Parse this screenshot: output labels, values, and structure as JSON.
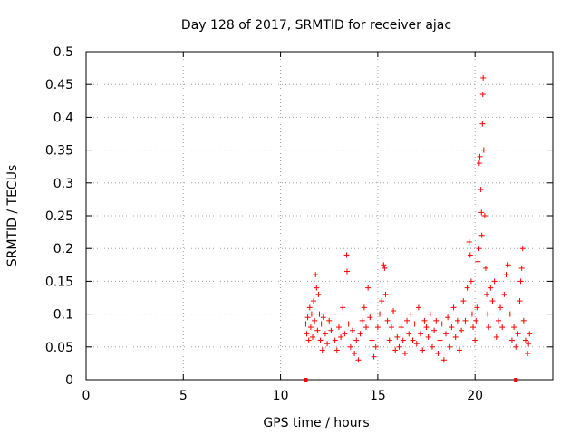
{
  "chart_data": {
    "type": "scatter",
    "title": "Day 128 of 2017, SRMTID for receiver ajac",
    "xlabel": "GPS time / hours",
    "ylabel": "SRMTID / TECUs",
    "xlim": [
      0,
      24
    ],
    "ylim": [
      0,
      0.5
    ],
    "grid": true,
    "marker": "+",
    "color": "#ff0000",
    "x_ticks": [
      {
        "value": 0,
        "label": "0"
      },
      {
        "value": 5,
        "label": "5"
      },
      {
        "value": 10,
        "label": "10"
      },
      {
        "value": 15,
        "label": "15"
      },
      {
        "value": 20,
        "label": "20"
      }
    ],
    "y_ticks": [
      {
        "value": 0,
        "label": "0"
      },
      {
        "value": 0.05,
        "label": "0.05"
      },
      {
        "value": 0.1,
        "label": "0.1"
      },
      {
        "value": 0.15,
        "label": "0.15"
      },
      {
        "value": 0.2,
        "label": "0.2"
      },
      {
        "value": 0.25,
        "label": "0.25"
      },
      {
        "value": 0.3,
        "label": "0.3"
      },
      {
        "value": 0.35,
        "label": "0.35"
      },
      {
        "value": 0.4,
        "label": "0.4"
      },
      {
        "value": 0.45,
        "label": "0.45"
      },
      {
        "value": 0.5,
        "label": "0.5"
      }
    ],
    "series": [
      {
        "name": "SRMTID",
        "points": [
          [
            11.3,
            0.085
          ],
          [
            11.35,
            0.07
          ],
          [
            11.4,
            0.095
          ],
          [
            11.45,
            0.06
          ],
          [
            11.5,
            0.11
          ],
          [
            11.55,
            0.08
          ],
          [
            11.6,
            0.1
          ],
          [
            11.65,
            0.065
          ],
          [
            11.7,
            0.12
          ],
          [
            11.75,
            0.09
          ],
          [
            11.8,
            0.16
          ],
          [
            11.85,
            0.14
          ],
          [
            11.9,
            0.075
          ],
          [
            11.95,
            0.13
          ],
          [
            12.0,
            0.1
          ],
          [
            12.05,
            0.06
          ],
          [
            12.1,
            0.085
          ],
          [
            12.15,
            0.045
          ],
          [
            12.2,
            0.095
          ],
          [
            12.3,
            0.07
          ],
          [
            12.4,
            0.055
          ],
          [
            12.5,
            0.09
          ],
          [
            12.6,
            0.075
          ],
          [
            12.7,
            0.1
          ],
          [
            12.8,
            0.06
          ],
          [
            12.9,
            0.045
          ],
          [
            13.0,
            0.08
          ],
          [
            13.1,
            0.065
          ],
          [
            13.2,
            0.11
          ],
          [
            13.3,
            0.07
          ],
          [
            13.4,
            0.19
          ],
          [
            13.42,
            0.165
          ],
          [
            13.5,
            0.085
          ],
          [
            13.6,
            0.05
          ],
          [
            13.7,
            0.075
          ],
          [
            13.8,
            0.04
          ],
          [
            13.9,
            0.06
          ],
          [
            14.0,
            0.03
          ],
          [
            14.1,
            0.07
          ],
          [
            14.2,
            0.09
          ],
          [
            14.3,
            0.11
          ],
          [
            14.4,
            0.08
          ],
          [
            14.5,
            0.14
          ],
          [
            14.6,
            0.095
          ],
          [
            14.7,
            0.06
          ],
          [
            14.8,
            0.035
          ],
          [
            14.9,
            0.05
          ],
          [
            15.0,
            0.08
          ],
          [
            15.1,
            0.1
          ],
          [
            15.2,
            0.12
          ],
          [
            15.3,
            0.175
          ],
          [
            15.35,
            0.17
          ],
          [
            15.4,
            0.13
          ],
          [
            15.5,
            0.09
          ],
          [
            15.6,
            0.06
          ],
          [
            15.7,
            0.08
          ],
          [
            15.8,
            0.105
          ],
          [
            15.9,
            0.045
          ],
          [
            16.0,
            0.065
          ],
          [
            16.1,
            0.05
          ],
          [
            16.2,
            0.08
          ],
          [
            16.3,
            0.06
          ],
          [
            16.4,
            0.04
          ],
          [
            16.5,
            0.09
          ],
          [
            16.6,
            0.07
          ],
          [
            16.7,
            0.1
          ],
          [
            16.8,
            0.06
          ],
          [
            16.9,
            0.085
          ],
          [
            17.0,
            0.055
          ],
          [
            17.1,
            0.11
          ],
          [
            17.2,
            0.07
          ],
          [
            17.3,
            0.045
          ],
          [
            17.4,
            0.09
          ],
          [
            17.5,
            0.08
          ],
          [
            17.6,
            0.065
          ],
          [
            17.7,
            0.1
          ],
          [
            17.8,
            0.05
          ],
          [
            17.9,
            0.075
          ],
          [
            18.0,
            0.09
          ],
          [
            18.1,
            0.04
          ],
          [
            18.2,
            0.06
          ],
          [
            18.3,
            0.085
          ],
          [
            18.4,
            0.03
          ],
          [
            18.5,
            0.07
          ],
          [
            18.6,
            0.095
          ],
          [
            18.7,
            0.05
          ],
          [
            18.8,
            0.08
          ],
          [
            18.9,
            0.11
          ],
          [
            19.0,
            0.065
          ],
          [
            19.1,
            0.09
          ],
          [
            19.2,
            0.045
          ],
          [
            19.3,
            0.075
          ],
          [
            19.4,
            0.12
          ],
          [
            19.5,
            0.09
          ],
          [
            19.6,
            0.14
          ],
          [
            19.7,
            0.21
          ],
          [
            19.75,
            0.19
          ],
          [
            19.8,
            0.15
          ],
          [
            19.85,
            0.1
          ],
          [
            19.9,
            0.08
          ],
          [
            20.0,
            0.06
          ],
          [
            20.05,
            0.09
          ],
          [
            20.1,
            0.11
          ],
          [
            20.15,
            0.18
          ],
          [
            20.2,
            0.2
          ],
          [
            20.22,
            0.33
          ],
          [
            20.25,
            0.34
          ],
          [
            20.3,
            0.29
          ],
          [
            20.33,
            0.255
          ],
          [
            20.35,
            0.22
          ],
          [
            20.38,
            0.39
          ],
          [
            20.4,
            0.435
          ],
          [
            20.42,
            0.46
          ],
          [
            20.45,
            0.35
          ],
          [
            20.5,
            0.25
          ],
          [
            20.55,
            0.17
          ],
          [
            20.6,
            0.13
          ],
          [
            20.65,
            0.1
          ],
          [
            20.7,
            0.08
          ],
          [
            20.8,
            0.14
          ],
          [
            20.9,
            0.12
          ],
          [
            21.0,
            0.15
          ],
          [
            21.1,
            0.065
          ],
          [
            21.2,
            0.09
          ],
          [
            21.3,
            0.11
          ],
          [
            21.4,
            0.08
          ],
          [
            21.5,
            0.13
          ],
          [
            21.6,
            0.16
          ],
          [
            21.7,
            0.175
          ],
          [
            21.8,
            0.1
          ],
          [
            21.9,
            0.06
          ],
          [
            22.0,
            0.08
          ],
          [
            22.1,
            0.05
          ],
          [
            22.2,
            0.07
          ],
          [
            22.3,
            0.12
          ],
          [
            22.35,
            0.15
          ],
          [
            22.4,
            0.17
          ],
          [
            22.45,
            0.2
          ],
          [
            22.5,
            0.09
          ],
          [
            22.6,
            0.06
          ],
          [
            22.7,
            0.04
          ],
          [
            22.75,
            0.055
          ],
          [
            22.8,
            0.07
          ]
        ]
      }
    ],
    "axis_markers": [
      11.3,
      22.1
    ]
  }
}
